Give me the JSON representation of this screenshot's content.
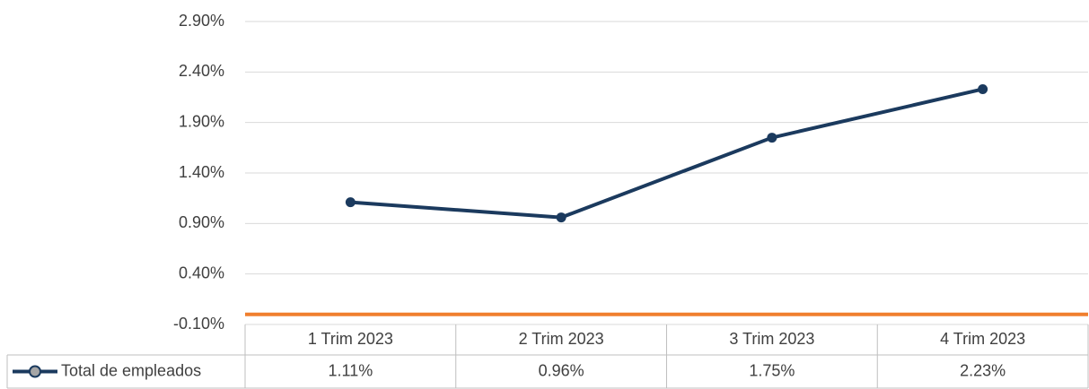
{
  "chart_data": {
    "type": "line",
    "categories": [
      "1 Trim 2023",
      "2 Trim 2023",
      "3 Trim 2023",
      "4 Trim 2023"
    ],
    "series": [
      {
        "name": "Total de empleados",
        "color": "#1b3a5e",
        "values": [
          1.11,
          0.96,
          1.75,
          2.23
        ],
        "value_labels": [
          "1.11%",
          "0.96%",
          "1.75%",
          "2.23%"
        ]
      }
    ],
    "ylim": [
      -0.1,
      2.9
    ],
    "yticks": [
      {
        "value": -0.1,
        "label": "-0.10%"
      },
      {
        "value": 0.4,
        "label": "0.40%"
      },
      {
        "value": 0.9,
        "label": "0.90%"
      },
      {
        "value": 1.4,
        "label": "1.40%"
      },
      {
        "value": 1.9,
        "label": "1.90%"
      },
      {
        "value": 2.4,
        "label": "2.40%"
      },
      {
        "value": 2.9,
        "label": "2.90%"
      }
    ],
    "grid": true,
    "legend": "table"
  }
}
